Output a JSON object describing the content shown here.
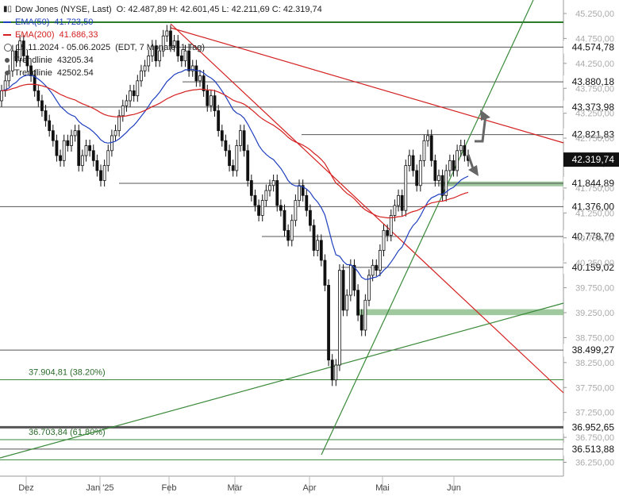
{
  "header": {
    "title": "Dow Jones (NYSE, Last)",
    "ohlc": "O: 42.487,89  H: 42.601,45  L: 42.211,69  C: 42.319,74",
    "ema50_label": "EMA(50)",
    "ema50_value": "41.723,50",
    "ema200_label": "EMA(200)",
    "ema200_value": "41.686,33",
    "period": "19.11.2024 - 05.06.2025",
    "period_detail": "(EDT, 7 Monate, 1 Tag)",
    "trend1_label": "Trendlinie",
    "trend1_value": "43205.34",
    "trend2_label": "Trendlinie",
    "trend2_value": "42502.54"
  },
  "colors": {
    "ema50": "#1f3fbf",
    "ema200": "#d42020",
    "trend_green": "#3a8a3a",
    "zone_green": "#8fbf8f",
    "price_box": "#222222",
    "last_price_bg": "#111111"
  },
  "chart_data": {
    "type": "candlestick",
    "x_months": [
      "Dez",
      "Jan '25",
      "Feb",
      "Mär",
      "Apr",
      "Mai",
      "Jun"
    ],
    "y_ticks": [
      "45.250,00",
      "44.750,00",
      "44.250,00",
      "43.750,00",
      "43.250,00",
      "42.750,00",
      "42.250,00",
      "41.750,00",
      "41.250,00",
      "40.750,00",
      "40.250,00",
      "39.750,00",
      "39.250,00",
      "38.750,00",
      "38.250,00",
      "37.750,00",
      "37.250,00",
      "36.750,00",
      "36.250,00"
    ],
    "ylim": [
      36100,
      45400
    ],
    "horizontal_levels": [
      {
        "label": "44.574,78",
        "value": 44574.78
      },
      {
        "label": "43.880,18",
        "value": 43880.18
      },
      {
        "label": "43.373,98",
        "value": 43373.98
      },
      {
        "label": "42.821,83",
        "value": 42821.83
      },
      {
        "label": "41.844,89",
        "value": 41844.89
      },
      {
        "label": "41.376,00",
        "value": 41376.0
      },
      {
        "label": "40.778,70",
        "value": 40778.7
      },
      {
        "label": "40.159,02",
        "value": 40159.02
      },
      {
        "label": "38.499,27",
        "value": 38499.27
      },
      {
        "label": "36.952,65",
        "value": 36952.65
      },
      {
        "label": "36.513,88",
        "value": 36513.88
      }
    ],
    "last_price": {
      "label": "42.319,74",
      "value": 42319.74
    },
    "fib_levels": [
      {
        "label": "37.904,81 (38.20%)",
        "value": 37904.81
      },
      {
        "label": "36.703,84 (61.80%)",
        "value": 36703.84
      }
    ],
    "zones": [
      {
        "low": 41800,
        "high": 41880
      },
      {
        "low": 39200,
        "high": 39320
      }
    ]
  }
}
